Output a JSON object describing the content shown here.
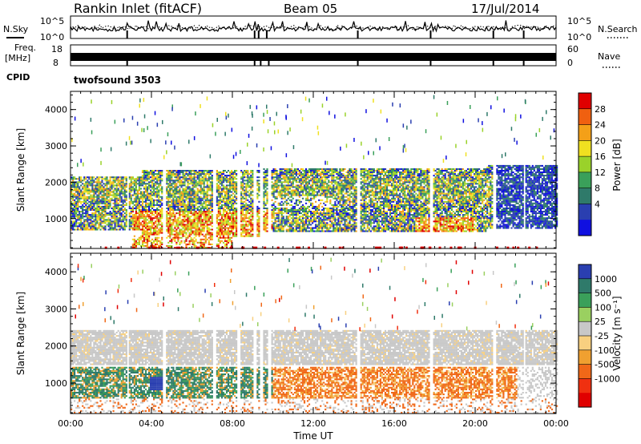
{
  "header": {
    "title": "Rankin Inlet (fitACF)",
    "beam": "Beam 05",
    "date": "17/Jul/2014"
  },
  "status_panel": {
    "nsky_label": "N.Sky",
    "nsearch_label": "N.Search",
    "noise_ticks": [
      "10^5",
      "10^0"
    ],
    "freq_label_1": "Freq.",
    "freq_label_2": "[MHz]",
    "freq_ticks": [
      "18",
      "8"
    ],
    "nave_label": "Nave",
    "nave_ticks": [
      "60",
      "0"
    ],
    "cpid_label": "CPID",
    "cpid_value": "twofsound 3503"
  },
  "colors": {
    "power_scale": [
      "#1010e0",
      "#2a3fb0",
      "#2f7a6a",
      "#3aa05a",
      "#9ad22a",
      "#f0e020",
      "#f4a018",
      "#f06010",
      "#e00000"
    ],
    "velocity_scale": [
      "#e00000",
      "#f03010",
      "#f06818",
      "#f0a030",
      "#f8d080",
      "#c8c8c8",
      "#9ad060",
      "#3aa05a",
      "#2f7a6a",
      "#2a3fb0"
    ]
  },
  "chart_data": [
    {
      "type": "heatmap",
      "name": "power",
      "xlabel": "",
      "ylabel": "Slant Range [km]",
      "x_ticks": [
        "00:00",
        "04:00",
        "08:00",
        "12:00",
        "16:00",
        "20:00",
        "00:00"
      ],
      "y_ticks": [
        1000,
        2000,
        3000,
        4000
      ],
      "xlim_hours": [
        0,
        24
      ],
      "ylim_km": [
        180,
        4500
      ],
      "colorbar_label": "Power [dB]",
      "colorbar_ticks": [
        4,
        8,
        12,
        16,
        20,
        24,
        28
      ],
      "echo_bands": [
        {
          "hours": [
            0,
            3.5
          ],
          "km": [
            700,
            2150
          ],
          "level": "mixed"
        },
        {
          "hours": [
            3.5,
            9.5
          ],
          "km": [
            500,
            2300
          ],
          "level": "strong-low"
        },
        {
          "hours": [
            9.5,
            20.5
          ],
          "km": [
            600,
            2350
          ],
          "level": "mixed"
        },
        {
          "hours": [
            20.5,
            24
          ],
          "km": [
            700,
            2450
          ],
          "level": "weak"
        }
      ]
    },
    {
      "type": "heatmap",
      "name": "velocity",
      "xlabel": "Time UT",
      "ylabel": "Slant Range [km]",
      "x_ticks": [
        "00:00",
        "04:00",
        "08:00",
        "12:00",
        "16:00",
        "20:00",
        "00:00"
      ],
      "y_ticks": [
        1000,
        2000,
        3000,
        4000
      ],
      "xlim_hours": [
        0,
        24
      ],
      "ylim_km": [
        180,
        4500
      ],
      "colorbar_label": "Velocity [m s⁻¹]",
      "colorbar_ticks": [
        "1000",
        "500",
        "100",
        "25",
        "-25",
        "-100",
        "-500",
        "-1000"
      ],
      "echo_bands": [
        {
          "hours": [
            0,
            24
          ],
          "km": [
            1500,
            2400
          ],
          "level": "near-zero (grey)"
        },
        {
          "hours": [
            0,
            10
          ],
          "km": [
            600,
            1300
          ],
          "level": "positive (green)"
        },
        {
          "hours": [
            10,
            22
          ],
          "km": [
            500,
            1300
          ],
          "level": "negative (orange)"
        }
      ]
    }
  ]
}
